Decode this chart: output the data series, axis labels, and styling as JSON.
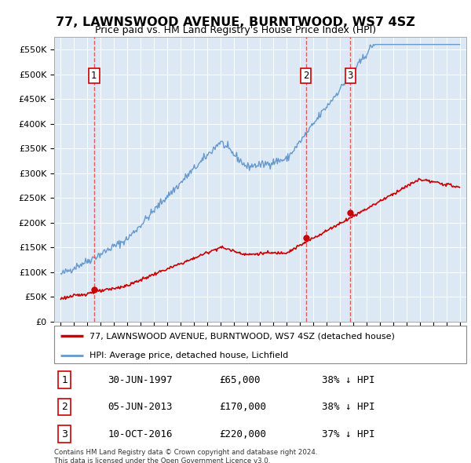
{
  "title": "77, LAWNSWOOD AVENUE, BURNTWOOD, WS7 4SZ",
  "subtitle": "Price paid vs. HM Land Registry's House Price Index (HPI)",
  "background_color": "#dce9f5",
  "plot_bg_color": "#dce9f5",
  "hpi_color": "#6699cc",
  "price_color": "#cc0000",
  "marker_color": "#cc0000",
  "dashed_line_color": "#dd4444",
  "yticks": [
    0,
    50000,
    100000,
    150000,
    200000,
    250000,
    300000,
    350000,
    400000,
    450000,
    500000,
    550000
  ],
  "ytick_labels": [
    "£0",
    "£50K",
    "£100K",
    "£150K",
    "£200K",
    "£250K",
    "£300K",
    "£350K",
    "£400K",
    "£450K",
    "£500K",
    "£550K"
  ],
  "xmin": 1994.5,
  "xmax": 2025.5,
  "ymin": 0,
  "ymax": 575000,
  "sales": [
    {
      "date_num": 1997.5,
      "price": 65000,
      "label": "1"
    },
    {
      "date_num": 2013.43,
      "price": 170000,
      "label": "2"
    },
    {
      "date_num": 2016.78,
      "price": 220000,
      "label": "3"
    }
  ],
  "sale_table": [
    {
      "num": "1",
      "date": "30-JUN-1997",
      "price": "£65,000",
      "pct": "38% ↓ HPI"
    },
    {
      "num": "2",
      "date": "05-JUN-2013",
      "price": "£170,000",
      "pct": "38% ↓ HPI"
    },
    {
      "num": "3",
      "date": "10-OCT-2016",
      "price": "£220,000",
      "pct": "37% ↓ HPI"
    }
  ],
  "legend_entries": [
    "77, LAWNSWOOD AVENUE, BURNTWOOD, WS7 4SZ (detached house)",
    "HPI: Average price, detached house, Lichfield"
  ],
  "footer": "Contains HM Land Registry data © Crown copyright and database right 2024.\nThis data is licensed under the Open Government Licence v3.0."
}
